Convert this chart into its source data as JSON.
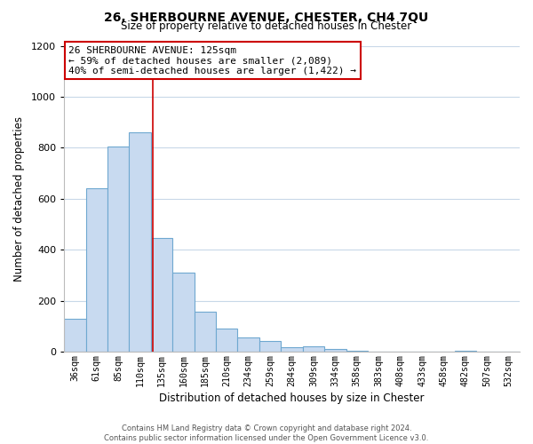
{
  "title": "26, SHERBOURNE AVENUE, CHESTER, CH4 7QU",
  "subtitle": "Size of property relative to detached houses in Chester",
  "xlabel": "Distribution of detached houses by size in Chester",
  "ylabel": "Number of detached properties",
  "categories": [
    "36sqm",
    "61sqm",
    "85sqm",
    "110sqm",
    "135sqm",
    "160sqm",
    "185sqm",
    "210sqm",
    "234sqm",
    "259sqm",
    "284sqm",
    "309sqm",
    "334sqm",
    "358sqm",
    "383sqm",
    "408sqm",
    "433sqm",
    "458sqm",
    "482sqm",
    "507sqm",
    "532sqm"
  ],
  "values": [
    130,
    640,
    805,
    860,
    445,
    310,
    157,
    93,
    55,
    43,
    17,
    22,
    12,
    5,
    0,
    0,
    0,
    0,
    5,
    0,
    0
  ],
  "bar_color": "#c8daf0",
  "bar_edge_color": "#6fa8d0",
  "annotation_box_edge": "#cc0000",
  "vline_color": "#cc0000",
  "annotation_lines": [
    "26 SHERBOURNE AVENUE: 125sqm",
    "← 59% of detached houses are smaller (2,089)",
    "40% of semi-detached houses are larger (1,422) →"
  ],
  "vline_x_index": 3.6,
  "ylim": [
    0,
    1200
  ],
  "yticks": [
    0,
    200,
    400,
    600,
    800,
    1000,
    1200
  ],
  "footer_line1": "Contains HM Land Registry data © Crown copyright and database right 2024.",
  "footer_line2": "Contains public sector information licensed under the Open Government Licence v3.0.",
  "background_color": "#ffffff",
  "grid_color": "#c8d8e8"
}
